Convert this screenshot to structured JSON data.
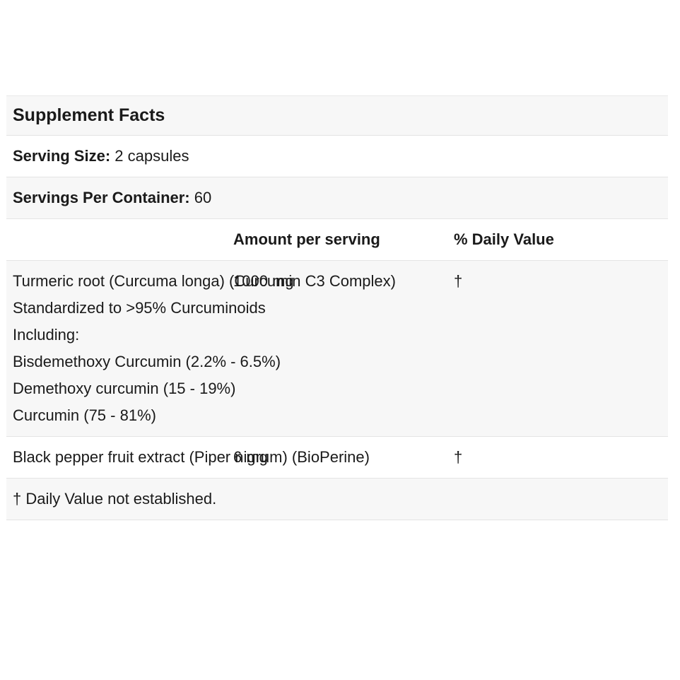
{
  "supplement_facts": {
    "title": "Supplement Facts",
    "serving_size": {
      "label": "Serving Size:",
      "value": "2 capsules"
    },
    "servings_per_container": {
      "label": "Servings Per Container:",
      "value": " 60"
    },
    "columns": {
      "amount": "Amount per serving",
      "daily_value": "% Daily Value"
    },
    "rows": [
      {
        "lines": [
          "Turmeric root (Curcuma longa) (Curcumin C3 Complex)",
          "Standardized to >95% Curcuminoids",
          "Including:",
          "Bisdemethoxy Curcumin (2.2% - 6.5%)",
          "Demethoxy curcumin (15 - 19%)",
          "Curcumin (75 - 81%)"
        ],
        "amount": "1000 mg",
        "daily_value": "†"
      },
      {
        "lines": [
          "Black pepper fruit extract (Piper nigrum) (BioPerine)"
        ],
        "amount": "6 mg",
        "daily_value": "†"
      }
    ],
    "footnote": "† Daily Value not established."
  },
  "colors": {
    "stripe_background": "#f7f7f7",
    "row_border": "#e4e4e4",
    "text": "#1a1a1a",
    "page_background": "#ffffff"
  }
}
